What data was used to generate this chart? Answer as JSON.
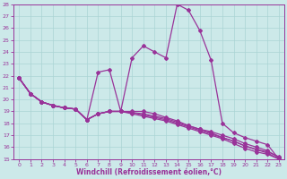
{
  "xlabel": "Windchill (Refroidissement éolien,°C)",
  "xlim": [
    -0.5,
    23.5
  ],
  "ylim": [
    15,
    28
  ],
  "yticks": [
    15,
    16,
    17,
    18,
    19,
    20,
    21,
    22,
    23,
    24,
    25,
    26,
    27,
    28
  ],
  "xticks": [
    0,
    1,
    2,
    3,
    4,
    5,
    6,
    7,
    8,
    9,
    10,
    11,
    12,
    13,
    14,
    15,
    16,
    17,
    18,
    19,
    20,
    21,
    22,
    23
  ],
  "bg_color": "#cce9e9",
  "grid_color": "#aad4d4",
  "line_color": "#993399",
  "line_width": 0.9,
  "marker": "D",
  "marker_size": 2.0,
  "curves": [
    [
      21.8,
      20.5,
      19.8,
      19.5,
      19.3,
      19.2,
      18.3,
      22.3,
      22.5,
      19.0,
      23.5,
      24.5,
      24.0,
      23.5,
      28.0,
      27.5,
      25.8,
      23.3,
      18.0,
      17.2,
      16.8,
      16.5,
      16.2,
      15.0
    ],
    [
      21.8,
      20.5,
      19.8,
      19.5,
      19.3,
      19.2,
      18.3,
      18.8,
      19.0,
      19.0,
      19.0,
      19.0,
      18.8,
      18.5,
      18.2,
      17.8,
      17.5,
      17.2,
      16.8,
      16.5,
      16.1,
      15.8,
      15.5,
      15.0
    ],
    [
      21.8,
      20.5,
      19.8,
      19.5,
      19.3,
      19.2,
      18.3,
      18.8,
      19.0,
      19.0,
      18.9,
      18.8,
      18.6,
      18.4,
      18.1,
      17.8,
      17.5,
      17.3,
      17.0,
      16.7,
      16.3,
      16.0,
      15.7,
      15.1
    ],
    [
      21.8,
      20.5,
      19.8,
      19.5,
      19.3,
      19.2,
      18.3,
      18.8,
      19.0,
      19.0,
      18.9,
      18.7,
      18.5,
      18.3,
      18.0,
      17.7,
      17.4,
      17.1,
      16.8,
      16.5,
      16.1,
      15.8,
      15.6,
      15.2
    ],
    [
      21.8,
      20.5,
      19.8,
      19.5,
      19.3,
      19.2,
      18.3,
      18.8,
      19.0,
      19.0,
      18.8,
      18.6,
      18.4,
      18.2,
      17.9,
      17.6,
      17.3,
      17.0,
      16.7,
      16.3,
      15.9,
      15.6,
      15.4,
      15.0
    ]
  ]
}
